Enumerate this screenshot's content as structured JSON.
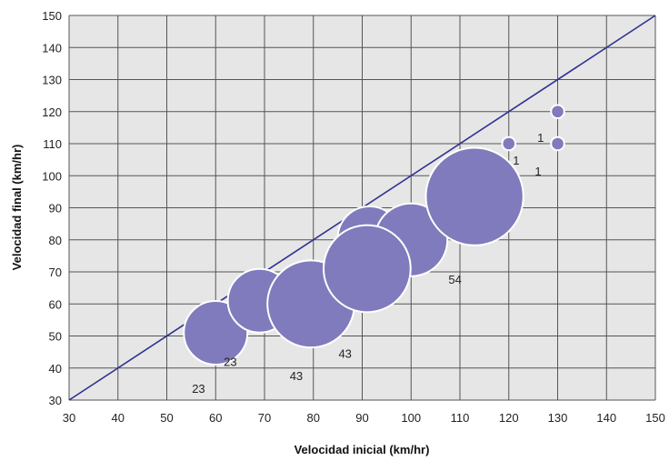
{
  "chart_data": {
    "type": "scatter",
    "title": "",
    "xlabel": "Velocidad inicial (km/hr)",
    "ylabel": "Velocidad final (km/hr)",
    "xlim": [
      30,
      150
    ],
    "ylim": [
      30,
      150
    ],
    "x_ticks": [
      "30",
      "40",
      "50",
      "60",
      "70",
      "80",
      "90",
      "100",
      "110",
      "120",
      "130",
      "140",
      "150"
    ],
    "y_ticks": [
      "30",
      "40",
      "50",
      "60",
      "70",
      "80",
      "90",
      "100",
      "110",
      "120",
      "130",
      "140",
      "150"
    ],
    "grid": true,
    "legend": "none",
    "reference_line": {
      "from": [
        30,
        30
      ],
      "to": [
        150,
        150
      ],
      "color": "#2e3192"
    },
    "bubble_color": "#7f7bbc",
    "bubble_stroke": "#ffffff",
    "points": [
      {
        "x": 60,
        "y": 51,
        "size": 23
      },
      {
        "x": 69,
        "y": 61,
        "size": 23
      },
      {
        "x": 79.5,
        "y": 60,
        "size": 43
      },
      {
        "x": 91.5,
        "y": 80.5,
        "size": 23
      },
      {
        "x": 100,
        "y": 80,
        "size": 30
      },
      {
        "x": 91,
        "y": 71,
        "size": 43
      },
      {
        "x": 113,
        "y": 93.5,
        "size": 54
      },
      {
        "x": 120,
        "y": 110,
        "size": 1
      },
      {
        "x": 130,
        "y": 120,
        "size": 1
      },
      {
        "x": 130,
        "y": 110,
        "size": 1
      }
    ],
    "data_labels": [
      {
        "text": "23",
        "x": 56.5,
        "y": 32.2
      },
      {
        "text": "23",
        "x": 63,
        "y": 40.7
      },
      {
        "text": "43",
        "x": 76.5,
        "y": 36.3
      },
      {
        "text": "43",
        "x": 86.5,
        "y": 43.2
      },
      {
        "text": "54",
        "x": 109,
        "y": 66.3
      },
      {
        "text": "1",
        "x": 121.5,
        "y": 103.5
      },
      {
        "text": "1",
        "x": 126,
        "y": 100.1
      },
      {
        "text": "1",
        "x": 126.5,
        "y": 110.5
      }
    ]
  }
}
